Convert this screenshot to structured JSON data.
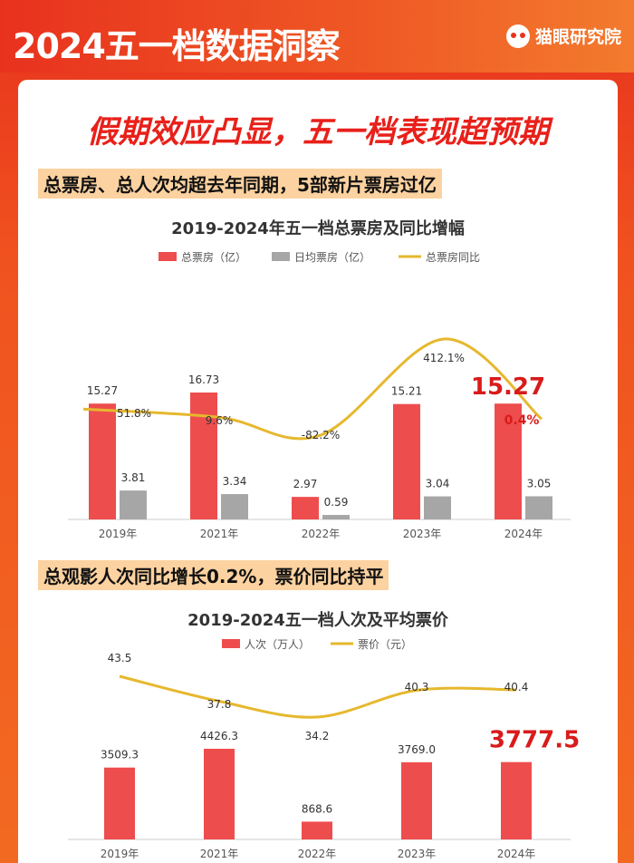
{
  "header": {
    "title": "2024五一档数据洞察",
    "brand": "猫眼研究院"
  },
  "headline": "假期效应凸显，五一档表现超预期",
  "section1": {
    "title": "总票房、总人次均超去年同期，5部新片票房过亿"
  },
  "section2": {
    "title": "总观影人次同比增长0.2%，票价同比持平"
  },
  "colors": {
    "bar_primary": "#ee4d4d",
    "bar_secondary": "#a6a6a6",
    "line": "#e6b82e",
    "highlight": "#d91b1b"
  },
  "chart_data": [
    {
      "type": "bar",
      "title": "2019-2024年五一档总票房及同比增幅",
      "categories": [
        "2019年",
        "2021年",
        "2022年",
        "2023年",
        "2024年"
      ],
      "series": [
        {
          "name": "总票房（亿）",
          "values": [
            15.27,
            16.73,
            2.97,
            15.21,
            15.27
          ]
        },
        {
          "name": "日均票房（亿）",
          "values": [
            3.81,
            3.34,
            0.59,
            3.04,
            3.05
          ]
        },
        {
          "name": "总票房同比",
          "type": "line",
          "values": [
            51.8,
            9.6,
            -82.2,
            412.1,
            0.4
          ],
          "labels": [
            "51.8%",
            "9.6%",
            "-82.2%",
            "412.1%",
            "0.4%"
          ]
        }
      ],
      "bar_labels": [
        "15.27",
        "16.73",
        "2.97",
        "15.21",
        "15.27"
      ],
      "secondary_labels": [
        "3.81",
        "3.34",
        "0.59",
        "3.04",
        "3.05"
      ],
      "legend_position": "top"
    },
    {
      "type": "bar",
      "title": "2019-2024五一档人次及平均票价",
      "categories": [
        "2019年",
        "2021年",
        "2022年",
        "2023年",
        "2024年"
      ],
      "series": [
        {
          "name": "人次（万人）",
          "values": [
            3509.3,
            4426.3,
            868.6,
            3769.0,
            3777.5
          ]
        },
        {
          "name": "票价（元）",
          "type": "line",
          "values": [
            43.5,
            37.8,
            34.2,
            40.3,
            40.4
          ]
        }
      ],
      "bar_labels": [
        "3509.3",
        "4426.3",
        "868.6",
        "3769.0",
        "3777.5"
      ],
      "line_labels": [
        "43.5",
        "37.8",
        "34.2",
        "40.3",
        "40.4"
      ],
      "legend_position": "top"
    }
  ]
}
